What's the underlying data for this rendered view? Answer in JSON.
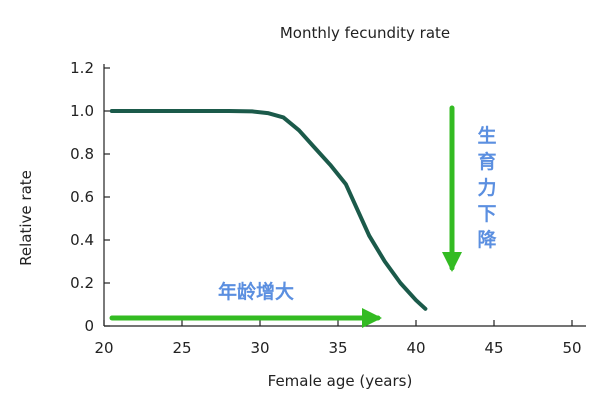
{
  "chart_data": {
    "type": "line",
    "title": "Monthly fecundity rate",
    "xlabel": "Female age (years)",
    "ylabel": "Relative rate",
    "xlim": [
      20,
      50
    ],
    "ylim": [
      0,
      1.2
    ],
    "x_ticks": [
      "20",
      "25",
      "30",
      "35",
      "40",
      "45",
      "50"
    ],
    "y_ticks": [
      "0",
      "0.2",
      "0.4",
      "0.6",
      "0.8",
      "1.0",
      "1.2"
    ],
    "grid": false,
    "series": [
      {
        "x": [
          20.5,
          24,
          28,
          29.5,
          30.5,
          31.5,
          32.5,
          33.5,
          34.5,
          35.5,
          36,
          37,
          38,
          39,
          40,
          40.6
        ],
        "y": [
          1.0,
          1.0,
          1.0,
          0.998,
          0.99,
          0.97,
          0.91,
          0.83,
          0.75,
          0.66,
          0.58,
          0.42,
          0.3,
          0.2,
          0.12,
          0.08
        ]
      }
    ],
    "annotations": {
      "age_arrow_label": "年龄增大",
      "fertility_arrow_label": [
        "生",
        "育",
        "力",
        "下",
        "降"
      ]
    }
  },
  "colors": {
    "curve": "#1b5a4a",
    "arrow": "#33bb22",
    "annotation_text": "#5b8fe0",
    "axis": "#222222"
  }
}
